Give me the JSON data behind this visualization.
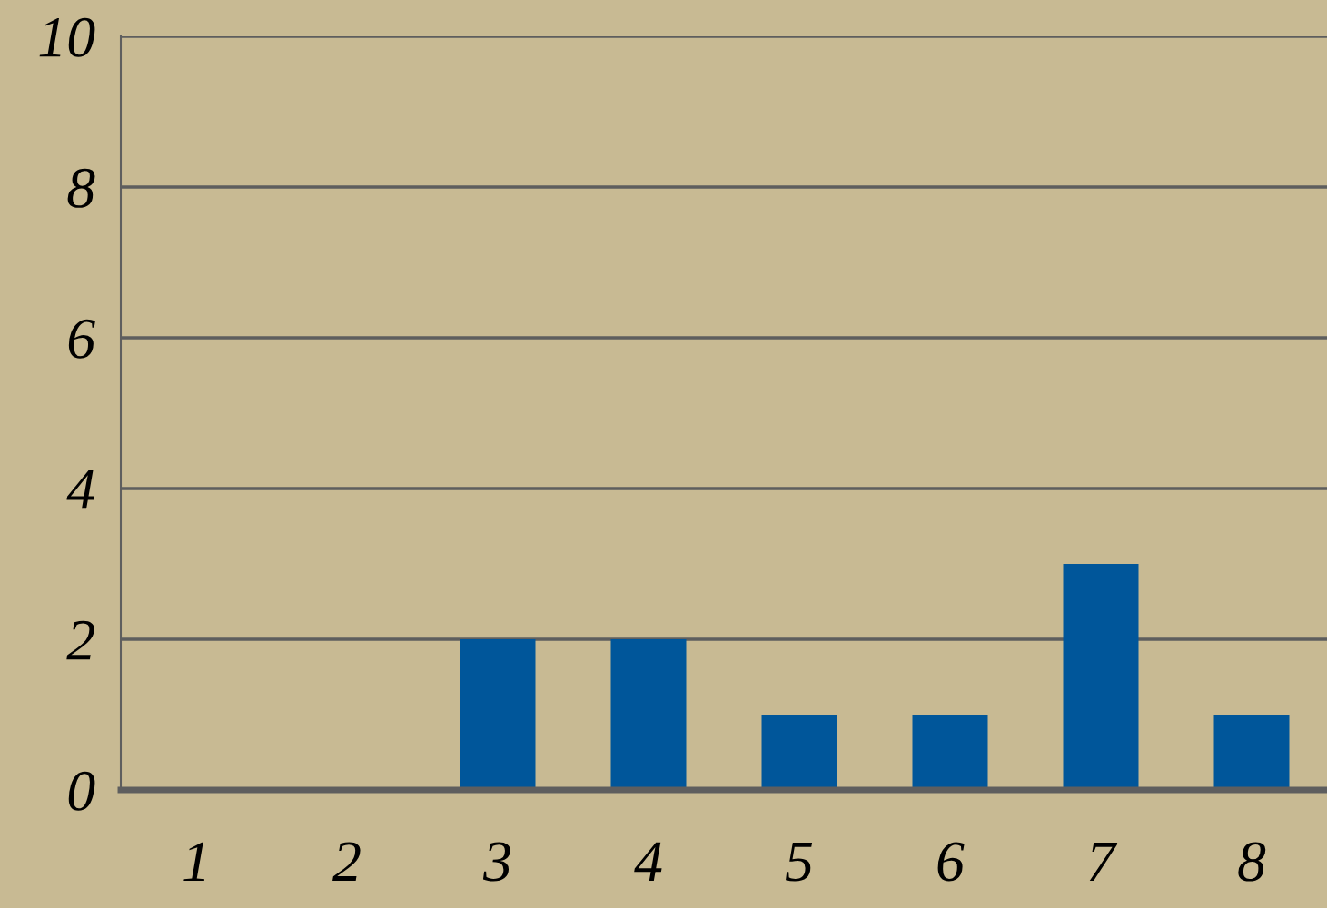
{
  "chart_data": {
    "type": "bar",
    "categories": [
      "1",
      "2",
      "3",
      "4",
      "5",
      "6",
      "7",
      "8"
    ],
    "values": [
      0,
      0,
      2,
      2,
      1,
      1,
      3,
      1
    ],
    "color": "#00569a",
    "ylim": [
      0,
      10
    ],
    "yticks": [
      0,
      2,
      4,
      6,
      8,
      10
    ],
    "grid": "y"
  }
}
